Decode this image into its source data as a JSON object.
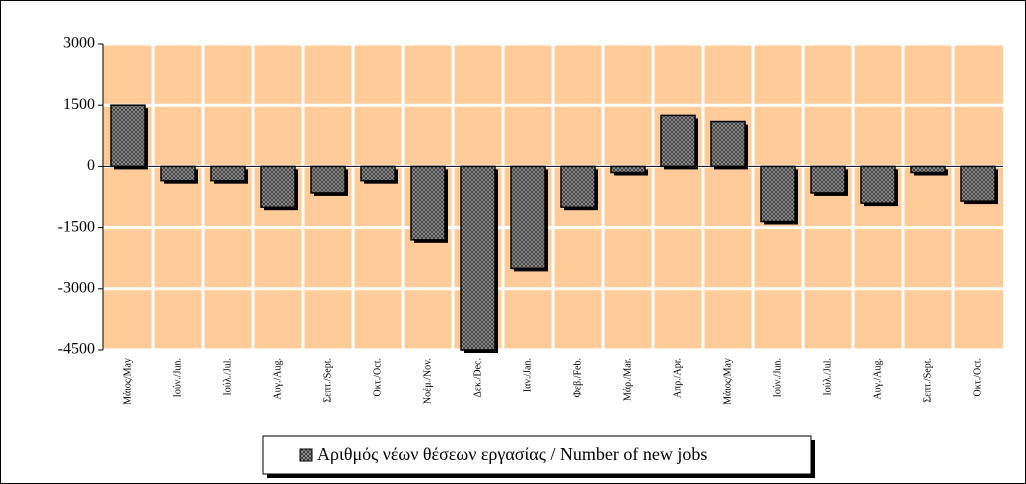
{
  "chart_data": {
    "type": "bar",
    "categories": [
      "Μάιος/May",
      "Ιούν./Jun.",
      "Ιούλ./Jul.",
      "Αυγ./Aug.",
      "Σεπτ./Sept.",
      "Οκτ./Oct.",
      "Νοέμ./Nov.",
      "Δεκ./Dec.",
      "Ιαν./Jan.",
      "Φεβ./Feb.",
      "Μάρ./Mar.",
      "Απρ./Apr.",
      "Μάιος/May",
      "Ιούν./Jun.",
      "Ιούλ./Jul.",
      "Αυγ./Aug.",
      "Σεπτ./Sept.",
      "Οκτ./Oct."
    ],
    "series": [
      {
        "name": "Αριθμός νέων θέσεων εργασίας / Number of new jobs",
        "color": "#9a9a9a",
        "values": [
          1500,
          -350,
          -350,
          -1000,
          -650,
          -350,
          -1800,
          -4500,
          -2500,
          -1000,
          -150,
          1250,
          1100,
          -1350,
          -650,
          -900,
          -150,
          -850
        ]
      }
    ],
    "ylim": [
      -4500,
      3000
    ],
    "yticks": [
      3000,
      1500,
      0,
      -1500,
      -3000,
      -4500
    ],
    "grid": true,
    "plot_background": "#ffcc99",
    "legend": "bottom"
  }
}
